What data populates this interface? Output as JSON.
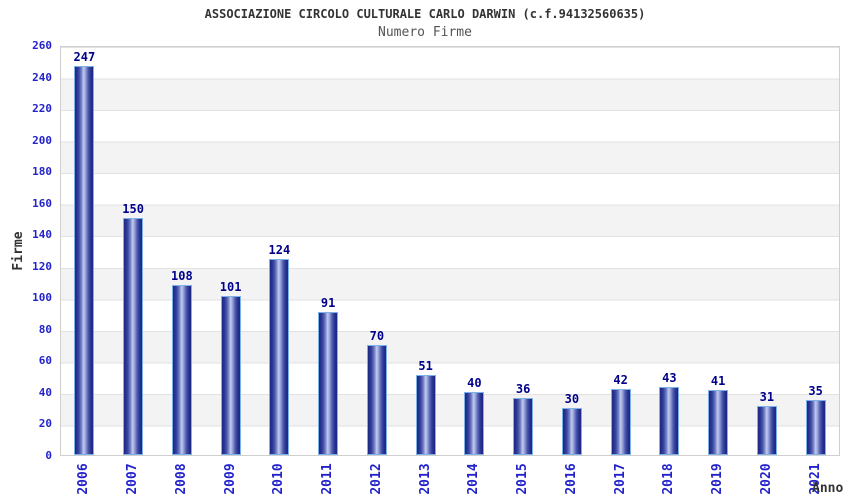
{
  "header": {
    "title": "ASSOCIAZIONE CIRCOLO CULTURALE CARLO DARWIN (c.f.94132560635)",
    "subtitle": "Numero Firme"
  },
  "chart_data": {
    "type": "bar",
    "title": "ASSOCIAZIONE CIRCOLO CULTURALE CARLO DARWIN (c.f.94132560635)",
    "subtitle": "Numero Firme",
    "xlabel": "Anno",
    "ylabel": "Firme",
    "categories": [
      "2006",
      "2007",
      "2008",
      "2009",
      "2010",
      "2011",
      "2012",
      "2013",
      "2014",
      "2015",
      "2016",
      "2017",
      "2018",
      "2019",
      "2020",
      "2021"
    ],
    "values": [
      247,
      150,
      108,
      101,
      124,
      91,
      70,
      51,
      40,
      36,
      30,
      42,
      43,
      41,
      31,
      35
    ],
    "ylim": [
      0,
      260
    ],
    "yticks": [
      0,
      20,
      40,
      60,
      80,
      100,
      120,
      140,
      160,
      180,
      200,
      220,
      240,
      260
    ],
    "grid": "horizontal gridlines with alternating white/gray bands every 20 units",
    "legend": "none",
    "value_labels": "shown above each bar"
  },
  "colors": {
    "bar_dark": "#1d2784",
    "bar_light": "#c3cbee",
    "bar_border": "#7db2e8",
    "axis_tick_label": "#2323cc",
    "value_label": "#00008b",
    "title_text": "#333333",
    "subtitle_text": "#555555",
    "band_gray": "#f3f3f3",
    "gridline": "#e2e2e2",
    "plot_border": "#cfcfcf"
  }
}
